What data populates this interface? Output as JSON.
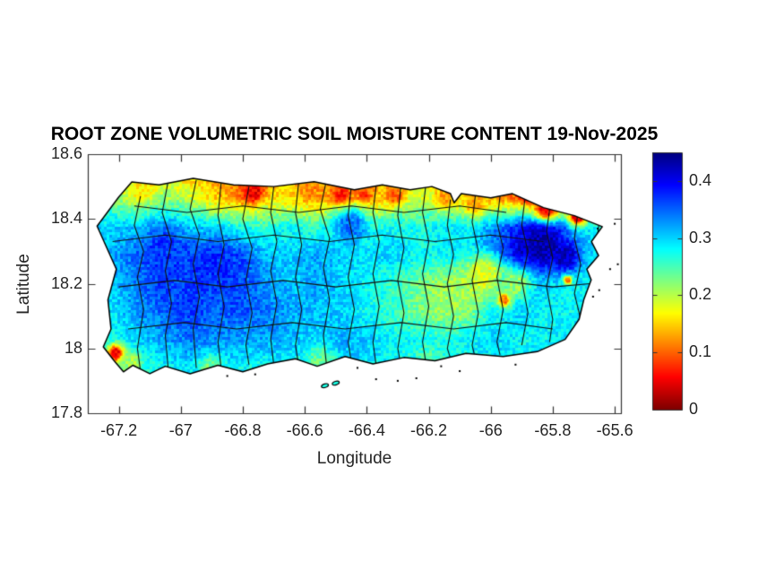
{
  "chart_data": {
    "type": "heatmap",
    "title": "ROOT ZONE VOLUMETRIC SOIL MOISTURE CONTENT 19-Nov-2025",
    "xlabel": "Longitude",
    "ylabel": "Latitude",
    "region_shape": "Puerto Rico",
    "xlim": [
      -67.3,
      -65.58
    ],
    "ylim": [
      17.8,
      18.6
    ],
    "x_ticks": {
      "values": [
        -67.2,
        -67.0,
        -66.8,
        -66.6,
        -66.4,
        -66.2,
        -66.0,
        -65.8,
        -65.6
      ],
      "labels": [
        "-67.2",
        "-67",
        "-66.8",
        "-66.6",
        "-66.4",
        "-66.2",
        "-66",
        "-65.8",
        "-65.6"
      ]
    },
    "y_ticks": {
      "values": [
        18.6,
        18.4,
        18.2,
        18.0,
        17.8
      ],
      "labels": [
        "18.6",
        "18.4",
        "18.2",
        "18",
        "17.8"
      ]
    },
    "colorbar": {
      "min": 0,
      "max": 0.45,
      "colormap": "jet-reversed",
      "tick_values": [
        0,
        0.1,
        0.2,
        0.3,
        0.4
      ],
      "tick_labels": [
        "0",
        "0.1",
        "0.2",
        "0.3",
        "0.4"
      ]
    },
    "colors": {
      "axis": "#333333",
      "tick_text": "#262626",
      "title_text": "#000000",
      "boundary_line": "#111111",
      "coast_line": "#000000",
      "background": "#ffffff"
    },
    "moisture_grid": {
      "lon0": -67.3,
      "lon1": -65.58,
      "lat_north": 18.55,
      "lat_south": 17.85,
      "ncols": 22,
      "nrows": 9,
      "rows_north_to_south": [
        [
          0.22,
          0.18,
          0.15,
          0.15,
          0.13,
          0.12,
          0.1,
          0.12,
          0.14,
          0.12,
          0.1,
          0.12,
          0.15,
          0.15,
          0.14,
          0.13,
          0.12,
          0.08,
          0.06,
          0.1,
          0.2,
          0.25
        ],
        [
          0.25,
          0.22,
          0.18,
          0.22,
          0.2,
          0.15,
          0.12,
          0.17,
          0.15,
          0.13,
          0.14,
          0.12,
          0.17,
          0.2,
          0.18,
          0.15,
          0.13,
          0.1,
          0.1,
          0.15,
          0.22,
          0.28
        ],
        [
          0.3,
          0.3,
          0.31,
          0.33,
          0.3,
          0.29,
          0.27,
          0.26,
          0.28,
          0.26,
          0.28,
          0.26,
          0.28,
          0.27,
          0.29,
          0.28,
          0.33,
          0.38,
          0.41,
          0.33,
          0.28,
          0.3
        ],
        [
          0.3,
          0.32,
          0.35,
          0.37,
          0.35,
          0.34,
          0.36,
          0.31,
          0.3,
          0.32,
          0.3,
          0.29,
          0.3,
          0.28,
          0.28,
          0.3,
          0.36,
          0.42,
          0.4,
          0.31,
          0.29,
          0.3
        ],
        [
          0.3,
          0.31,
          0.34,
          0.37,
          0.36,
          0.35,
          0.36,
          0.33,
          0.31,
          0.32,
          0.3,
          0.28,
          0.26,
          0.23,
          0.21,
          0.2,
          0.27,
          0.32,
          0.3,
          0.28,
          0.29,
          0.3
        ],
        [
          0.28,
          0.29,
          0.33,
          0.35,
          0.37,
          0.35,
          0.36,
          0.34,
          0.32,
          0.31,
          0.3,
          0.28,
          0.26,
          0.23,
          0.21,
          0.23,
          0.28,
          0.3,
          0.28,
          0.28,
          0.29,
          0.3
        ],
        [
          0.28,
          0.28,
          0.3,
          0.32,
          0.34,
          0.33,
          0.32,
          0.32,
          0.31,
          0.3,
          0.32,
          0.3,
          0.28,
          0.28,
          0.27,
          0.28,
          0.3,
          0.28,
          0.28,
          0.29,
          0.3,
          0.3
        ],
        [
          0.26,
          0.24,
          0.26,
          0.28,
          0.29,
          0.3,
          0.28,
          0.27,
          0.28,
          0.28,
          0.3,
          0.29,
          0.28,
          0.27,
          0.28,
          0.28,
          0.28,
          0.29,
          0.3,
          0.3,
          0.3,
          0.3
        ],
        [
          0.28,
          0.28,
          0.28,
          0.29,
          0.29,
          0.3,
          0.3,
          0.29,
          0.29,
          0.3,
          0.3,
          0.3,
          0.29,
          0.29,
          0.29,
          0.3,
          0.3,
          0.3,
          0.3,
          0.3,
          0.3,
          0.3
        ]
      ]
    },
    "hotspots": [
      [
        -66.765,
        18.485,
        0.035,
        0.05
      ],
      [
        -66.48,
        18.47,
        0.028,
        0.06
      ],
      [
        -66.41,
        18.475,
        0.022,
        0.08
      ],
      [
        -66.58,
        18.49,
        0.03,
        0.12
      ],
      [
        -66.31,
        18.475,
        0.03,
        0.1
      ],
      [
        -66.15,
        18.465,
        0.028,
        0.12
      ],
      [
        -66.05,
        18.445,
        0.03,
        0.12
      ],
      [
        -65.888,
        18.475,
        0.022,
        0.05
      ],
      [
        -65.82,
        18.432,
        0.038,
        0.05
      ],
      [
        -65.72,
        18.408,
        0.028,
        0.06
      ],
      [
        -67.12,
        18.495,
        0.03,
        0.16
      ],
      [
        -67.21,
        17.985,
        0.025,
        0.04
      ],
      [
        -65.955,
        18.152,
        0.02,
        0.06
      ],
      [
        -65.752,
        18.212,
        0.013,
        0.07
      ],
      [
        -66.02,
        18.23,
        0.06,
        0.18
      ],
      [
        -66.1,
        18.16,
        0.05,
        0.21
      ],
      [
        -65.92,
        18.2,
        0.05,
        0.22
      ],
      [
        -66.9,
        17.94,
        0.04,
        0.23
      ],
      [
        -66.55,
        17.955,
        0.05,
        0.24
      ],
      [
        -66.2,
        17.965,
        0.04,
        0.25
      ],
      [
        -67.16,
        17.96,
        0.03,
        0.21
      ],
      [
        -65.832,
        18.32,
        0.055,
        0.43
      ],
      [
        -65.76,
        18.285,
        0.045,
        0.42
      ],
      [
        -66.9,
        18.25,
        0.08,
        0.375
      ],
      [
        -67.05,
        18.3,
        0.06,
        0.37
      ],
      [
        -66.45,
        18.38,
        0.05,
        0.34
      ]
    ],
    "island_outline": [
      [
        -67.158,
        18.514
      ],
      [
        -67.07,
        18.505
      ],
      [
        -66.96,
        18.525
      ],
      [
        -66.83,
        18.505
      ],
      [
        -66.7,
        18.5
      ],
      [
        -66.57,
        18.515
      ],
      [
        -66.44,
        18.49
      ],
      [
        -66.35,
        18.505
      ],
      [
        -66.26,
        18.49
      ],
      [
        -66.19,
        18.5
      ],
      [
        -66.13,
        18.478
      ],
      [
        -66.118,
        18.45
      ],
      [
        -66.095,
        18.478
      ],
      [
        -66.0,
        18.465
      ],
      [
        -65.93,
        18.478
      ],
      [
        -65.83,
        18.435
      ],
      [
        -65.73,
        18.41
      ],
      [
        -65.64,
        18.376
      ],
      [
        -65.675,
        18.33
      ],
      [
        -65.652,
        18.287
      ],
      [
        -65.69,
        18.245
      ],
      [
        -65.676,
        18.212
      ],
      [
        -65.7,
        18.15
      ],
      [
        -65.715,
        18.09
      ],
      [
        -65.76,
        18.028
      ],
      [
        -65.85,
        17.99
      ],
      [
        -65.96,
        17.975
      ],
      [
        -66.08,
        17.985
      ],
      [
        -66.18,
        17.962
      ],
      [
        -66.28,
        17.972
      ],
      [
        -66.38,
        17.952
      ],
      [
        -66.47,
        17.975
      ],
      [
        -66.56,
        17.945
      ],
      [
        -66.63,
        17.968
      ],
      [
        -66.72,
        17.952
      ],
      [
        -66.8,
        17.928
      ],
      [
        -66.88,
        17.948
      ],
      [
        -66.97,
        17.922
      ],
      [
        -67.05,
        17.945
      ],
      [
        -67.1,
        17.922
      ],
      [
        -67.155,
        17.948
      ],
      [
        -67.185,
        17.928
      ],
      [
        -67.215,
        17.962
      ],
      [
        -67.25,
        18.005
      ],
      [
        -67.225,
        18.06
      ],
      [
        -67.235,
        18.15
      ],
      [
        -67.208,
        18.245
      ],
      [
        -67.27,
        18.378
      ],
      [
        -67.2,
        18.468
      ]
    ],
    "municipal_boundaries": [
      [
        [
          -67.13,
          18.47
        ],
        [
          -67.15,
          18.38
        ],
        [
          -67.12,
          18.3
        ],
        [
          -67.14,
          18.22
        ],
        [
          -67.12,
          18.12
        ],
        [
          -67.14,
          18.0
        ],
        [
          -67.13,
          17.93
        ]
      ],
      [
        [
          -67.04,
          18.52
        ],
        [
          -67.06,
          18.42
        ],
        [
          -67.03,
          18.33
        ],
        [
          -67.05,
          18.24
        ],
        [
          -67.03,
          18.14
        ],
        [
          -67.05,
          18.04
        ],
        [
          -67.04,
          17.93
        ]
      ],
      [
        [
          -66.95,
          18.52
        ],
        [
          -66.97,
          18.43
        ],
        [
          -66.94,
          18.35
        ],
        [
          -66.96,
          18.26
        ],
        [
          -66.94,
          18.16
        ],
        [
          -66.96,
          18.06
        ],
        [
          -66.95,
          17.94
        ]
      ],
      [
        [
          -66.87,
          18.51
        ],
        [
          -66.88,
          18.41
        ],
        [
          -66.86,
          18.32
        ],
        [
          -66.88,
          18.23
        ],
        [
          -66.86,
          18.13
        ],
        [
          -66.88,
          18.02
        ],
        [
          -66.87,
          17.94
        ]
      ],
      [
        [
          -66.78,
          18.5
        ],
        [
          -66.8,
          18.4
        ],
        [
          -66.77,
          18.31
        ],
        [
          -66.79,
          18.21
        ],
        [
          -66.77,
          18.11
        ],
        [
          -66.79,
          18.01
        ],
        [
          -66.78,
          17.95
        ]
      ],
      [
        [
          -66.7,
          18.5
        ],
        [
          -66.71,
          18.42
        ],
        [
          -66.69,
          18.33
        ],
        [
          -66.71,
          18.24
        ],
        [
          -66.69,
          18.14
        ],
        [
          -66.71,
          18.03
        ],
        [
          -66.7,
          17.95
        ]
      ],
      [
        [
          -66.62,
          18.51
        ],
        [
          -66.63,
          18.42
        ],
        [
          -66.61,
          18.32
        ],
        [
          -66.63,
          18.22
        ],
        [
          -66.61,
          18.12
        ],
        [
          -66.63,
          18.01
        ],
        [
          -66.62,
          17.95
        ]
      ],
      [
        [
          -66.53,
          18.52
        ],
        [
          -66.55,
          18.43
        ],
        [
          -66.52,
          18.34
        ],
        [
          -66.54,
          18.25
        ],
        [
          -66.52,
          18.15
        ],
        [
          -66.54,
          18.04
        ],
        [
          -66.53,
          17.95
        ]
      ],
      [
        [
          -66.45,
          18.5
        ],
        [
          -66.46,
          18.41
        ],
        [
          -66.44,
          18.32
        ],
        [
          -66.46,
          18.22
        ],
        [
          -66.44,
          18.12
        ],
        [
          -66.46,
          18.02
        ],
        [
          -66.45,
          17.96
        ]
      ],
      [
        [
          -66.37,
          18.5
        ],
        [
          -66.38,
          18.42
        ],
        [
          -66.36,
          18.33
        ],
        [
          -66.38,
          18.23
        ],
        [
          -66.36,
          18.13
        ],
        [
          -66.38,
          18.02
        ],
        [
          -66.37,
          17.95
        ]
      ],
      [
        [
          -66.29,
          18.5
        ],
        [
          -66.3,
          18.41
        ],
        [
          -66.28,
          18.31
        ],
        [
          -66.3,
          18.21
        ],
        [
          -66.28,
          18.11
        ],
        [
          -66.3,
          18.0
        ],
        [
          -66.29,
          17.95
        ]
      ],
      [
        [
          -66.21,
          18.5
        ],
        [
          -66.22,
          18.42
        ],
        [
          -66.2,
          18.33
        ],
        [
          -66.22,
          18.23
        ],
        [
          -66.2,
          18.13
        ],
        [
          -66.22,
          18.02
        ],
        [
          -66.21,
          17.96
        ]
      ],
      [
        [
          -66.13,
          18.46
        ],
        [
          -66.14,
          18.38
        ],
        [
          -66.12,
          18.29
        ],
        [
          -66.14,
          18.2
        ],
        [
          -66.12,
          18.1
        ],
        [
          -66.14,
          18.0
        ],
        [
          -66.13,
          17.97
        ]
      ],
      [
        [
          -66.05,
          18.47
        ],
        [
          -66.06,
          18.39
        ],
        [
          -66.04,
          18.3
        ],
        [
          -66.06,
          18.21
        ],
        [
          -66.04,
          18.11
        ],
        [
          -66.06,
          18.01
        ],
        [
          -66.05,
          17.97
        ]
      ],
      [
        [
          -65.97,
          18.47
        ],
        [
          -65.98,
          18.39
        ],
        [
          -65.96,
          18.31
        ],
        [
          -65.98,
          18.22
        ],
        [
          -65.96,
          18.12
        ],
        [
          -65.98,
          18.02
        ],
        [
          -65.97,
          17.98
        ]
      ],
      [
        [
          -65.89,
          18.46
        ],
        [
          -65.9,
          18.38
        ],
        [
          -65.88,
          18.3
        ],
        [
          -65.9,
          18.21
        ],
        [
          -65.88,
          18.11
        ],
        [
          -65.9,
          18.01
        ]
      ],
      [
        [
          -65.81,
          18.43
        ],
        [
          -65.82,
          18.36
        ],
        [
          -65.8,
          18.28
        ],
        [
          -65.82,
          18.19
        ],
        [
          -65.8,
          18.09
        ],
        [
          -65.81,
          18.02
        ]
      ],
      [
        [
          -65.72,
          18.41
        ],
        [
          -65.73,
          18.34
        ],
        [
          -65.71,
          18.26
        ],
        [
          -65.73,
          18.17
        ],
        [
          -65.71,
          18.09
        ]
      ],
      [
        [
          -65.65,
          18.39
        ],
        [
          -65.66,
          18.32
        ],
        [
          -65.64,
          18.25
        ]
      ],
      [
        [
          -67.22,
          18.33
        ],
        [
          -67.05,
          18.35
        ],
        [
          -66.88,
          18.33
        ],
        [
          -66.7,
          18.35
        ],
        [
          -66.52,
          18.33
        ],
        [
          -66.35,
          18.35
        ],
        [
          -66.18,
          18.33
        ],
        [
          -66.0,
          18.35
        ],
        [
          -65.83,
          18.33
        ]
      ],
      [
        [
          -67.2,
          18.19
        ],
        [
          -67.02,
          18.21
        ],
        [
          -66.85,
          18.19
        ],
        [
          -66.67,
          18.21
        ],
        [
          -66.5,
          18.19
        ],
        [
          -66.32,
          18.21
        ],
        [
          -66.15,
          18.19
        ],
        [
          -65.98,
          18.21
        ],
        [
          -65.8,
          18.19
        ],
        [
          -65.68,
          18.2
        ]
      ],
      [
        [
          -67.17,
          18.06
        ],
        [
          -66.99,
          18.08
        ],
        [
          -66.82,
          18.06
        ],
        [
          -66.64,
          18.08
        ],
        [
          -66.47,
          18.06
        ],
        [
          -66.29,
          18.08
        ],
        [
          -66.12,
          18.06
        ],
        [
          -65.95,
          18.08
        ],
        [
          -65.8,
          18.06
        ]
      ],
      [
        [
          -67.15,
          18.44
        ],
        [
          -66.98,
          18.42
        ],
        [
          -66.8,
          18.44
        ],
        [
          -66.62,
          18.42
        ],
        [
          -66.45,
          18.44
        ],
        [
          -66.28,
          18.42
        ],
        [
          -66.1,
          18.44
        ],
        [
          -65.95,
          18.42
        ]
      ]
    ],
    "islets": [
      [
        -66.535,
        17.885
      ],
      [
        -66.5,
        17.893
      ]
    ],
    "specks": [
      [
        -66.37,
        17.905
      ],
      [
        -66.3,
        17.9
      ],
      [
        -66.24,
        17.908
      ],
      [
        -66.1,
        17.93
      ],
      [
        -65.92,
        17.95
      ],
      [
        -65.655,
        18.37
      ],
      [
        -65.6,
        18.385
      ],
      [
        -65.59,
        18.26
      ],
      [
        -65.615,
        18.245
      ],
      [
        -65.65,
        18.18
      ],
      [
        -65.67,
        18.16
      ],
      [
        -66.76,
        17.92
      ],
      [
        -66.85,
        17.915
      ],
      [
        -66.43,
        17.94
      ],
      [
        -66.16,
        17.945
      ]
    ]
  }
}
